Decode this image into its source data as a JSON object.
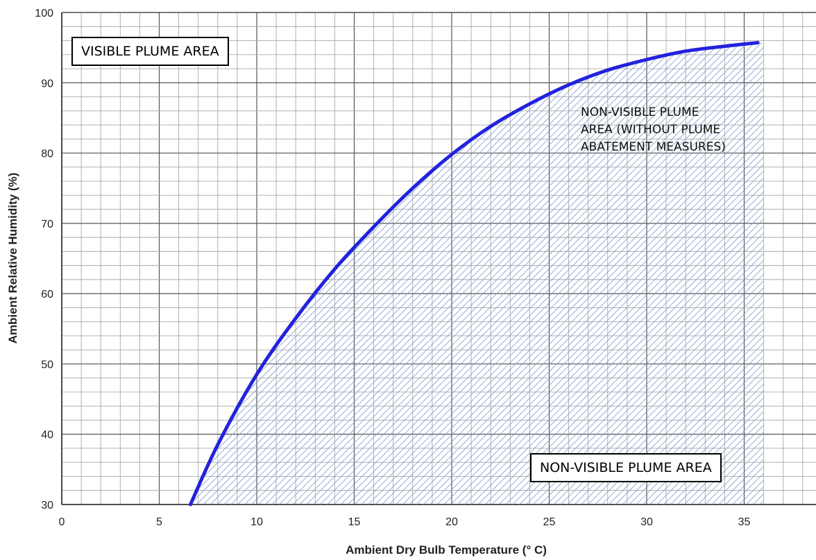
{
  "chart_data": {
    "type": "area",
    "xlabel": "Ambient Dry Bulb Temperature (° C)",
    "ylabel": "Ambient Relative Humidity (%)",
    "xlim": [
      0,
      36
    ],
    "ylim": [
      30,
      100
    ],
    "x_ticks": [
      "0",
      "5",
      "10",
      "15",
      "20",
      "25",
      "30",
      "35"
    ],
    "y_ticks": [
      "30",
      "40",
      "50",
      "60",
      "70",
      "80",
      "90",
      "100"
    ],
    "grid": true,
    "series": [
      {
        "x": [
          6.6,
          8,
          10,
          12,
          14,
          16,
          18,
          20,
          22,
          24,
          26,
          28,
          30,
          32,
          34,
          35.7
        ],
        "y": [
          30,
          38.5,
          48.5,
          56.5,
          63.5,
          69.5,
          75,
          79.8,
          83.8,
          87,
          89.7,
          91.8,
          93.3,
          94.5,
          95.2,
          95.7
        ],
        "color": "#2222dd",
        "fill": "hatched"
      }
    ],
    "annotations": {
      "visible_area": "VISIBLE PLUME AREA",
      "nonvisible_abatement": [
        "NON-VISIBLE PLUME",
        "AREA (WITHOUT PLUME",
        "ABATEMENT MEASURES)"
      ],
      "nonvisible_area": "NON-VISIBLE PLUME AREA"
    },
    "colors": {
      "curve": "#2222dd",
      "hatch": "#7a96c8",
      "grid": "#a8a8a8"
    }
  }
}
